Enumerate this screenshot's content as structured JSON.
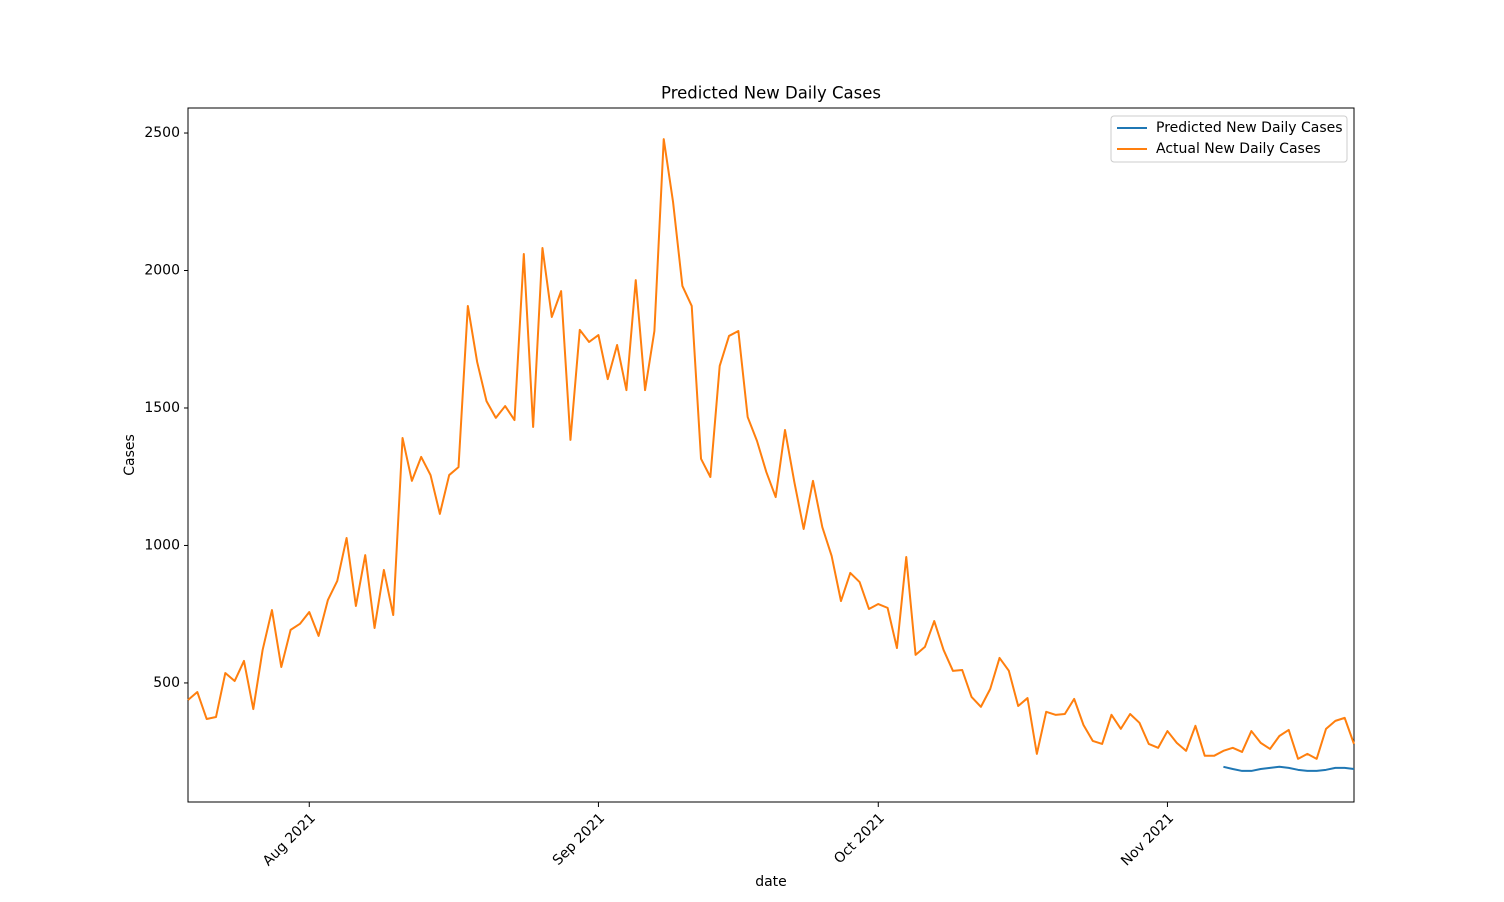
{
  "chart_data": {
    "type": "line",
    "title": "Predicted New Daily Cases",
    "x_label": "date",
    "y_label": "Cases",
    "xlim": [
      0,
      125
    ],
    "xticks": [
      {
        "value": 13,
        "label": "Aug 2021"
      },
      {
        "value": 44,
        "label": "Sep 2021"
      },
      {
        "value": 74,
        "label": "Oct 2021"
      },
      {
        "value": 105,
        "label": "Nov 2021"
      }
    ],
    "ylim": [
      67,
      2591
    ],
    "yticks": [
      500,
      1000,
      1500,
      2000,
      2500
    ],
    "legend": "upper right",
    "series": [
      {
        "name": "Predicted New Daily Cases",
        "color": "#1f77b4",
        "values": [
          null,
          null,
          null,
          null,
          null,
          null,
          null,
          null,
          null,
          null,
          null,
          null,
          null,
          null,
          null,
          null,
          null,
          null,
          null,
          null,
          null,
          null,
          null,
          null,
          null,
          null,
          null,
          null,
          null,
          null,
          null,
          null,
          null,
          null,
          null,
          null,
          null,
          null,
          null,
          null,
          null,
          null,
          null,
          null,
          null,
          null,
          null,
          null,
          null,
          null,
          null,
          null,
          null,
          null,
          null,
          null,
          null,
          null,
          null,
          null,
          null,
          null,
          null,
          null,
          null,
          null,
          null,
          null,
          null,
          null,
          null,
          null,
          null,
          null,
          null,
          null,
          null,
          null,
          null,
          null,
          null,
          null,
          null,
          null,
          null,
          null,
          null,
          null,
          null,
          null,
          null,
          null,
          null,
          null,
          null,
          null,
          null,
          null,
          null,
          null,
          null,
          null,
          null,
          null,
          null,
          null,
          null,
          null,
          null,
          null,
          null,
          195,
          187,
          180,
          180,
          187,
          191,
          195,
          191,
          184,
          180,
          180,
          184,
          191,
          191,
          187
        ]
      },
      {
        "name": "Actual New Daily Cases",
        "color": "#ff7f0e",
        "values": [
          438,
          467,
          369,
          376,
          536,
          507,
          580,
          405,
          620,
          765,
          558,
          693,
          715,
          758,
          671,
          802,
          871,
          1027,
          780,
          965,
          700,
          911,
          747,
          1391,
          1235,
          1322,
          1256,
          1115,
          1256,
          1285,
          1871,
          1667,
          1525,
          1464,
          1507,
          1456,
          2060,
          1431,
          2082,
          1831,
          1925,
          1384,
          1784,
          1740,
          1765,
          1605,
          1729,
          1565,
          1965,
          1565,
          1780,
          2478,
          2249,
          1944,
          1871,
          1315,
          1249,
          1653,
          1762,
          1780,
          1467,
          1380,
          1267,
          1176,
          1420,
          1231,
          1060,
          1235,
          1067,
          962,
          798,
          900,
          867,
          769,
          787,
          773,
          627,
          958,
          602,
          631,
          725,
          620,
          544,
          547,
          449,
          413,
          478,
          591,
          544,
          416,
          445,
          242,
          395,
          384,
          387,
          442,
          347,
          289,
          278,
          384,
          333,
          387,
          355,
          278,
          264,
          325,
          282,
          253,
          344,
          235,
          235,
          253,
          264,
          249,
          325,
          282,
          260,
          307,
          329,
          224,
          242,
          224,
          333,
          362,
          373,
          278
        ]
      }
    ]
  }
}
